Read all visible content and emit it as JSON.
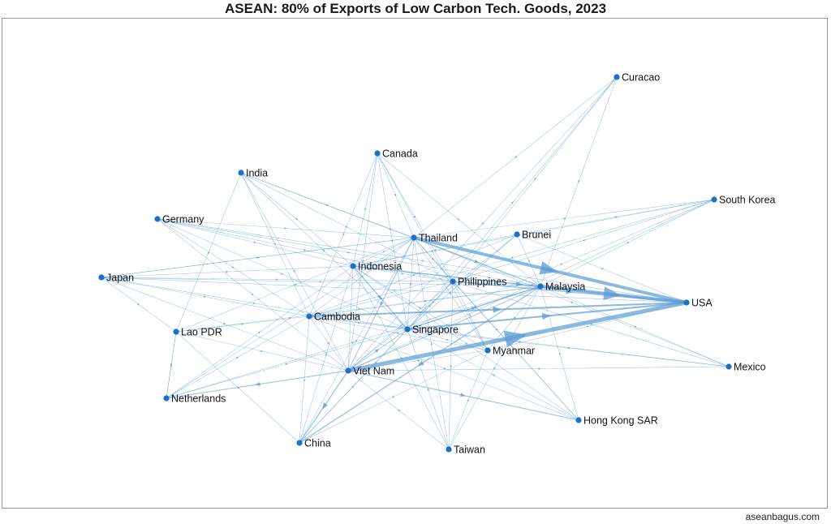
{
  "title": "ASEAN: 80% of Exports of Low Carbon Tech. Goods, 2023",
  "footer": "aseanbagus.com",
  "colors": {
    "edge": "#5b9bd5",
    "node": "#1f6fc4",
    "frame": "#9a9a9a"
  },
  "nodes": [
    {
      "id": "Curacao",
      "label": "Curacao"
    },
    {
      "id": "Canada",
      "label": "Canada"
    },
    {
      "id": "India",
      "label": "India"
    },
    {
      "id": "South Korea",
      "label": "South Korea"
    },
    {
      "id": "Germany",
      "label": "Germany"
    },
    {
      "id": "Thailand",
      "label": "Thailand"
    },
    {
      "id": "Brunei",
      "label": "Brunei"
    },
    {
      "id": "Indonesia",
      "label": "Indonesia"
    },
    {
      "id": "Japan",
      "label": "Japan"
    },
    {
      "id": "Philippines",
      "label": "Philippines"
    },
    {
      "id": "Malaysia",
      "label": "Malaysia"
    },
    {
      "id": "USA",
      "label": "USA"
    },
    {
      "id": "Cambodia",
      "label": "Cambodia"
    },
    {
      "id": "Lao PDR",
      "label": "Lao PDR"
    },
    {
      "id": "Singapore",
      "label": "Singapore"
    },
    {
      "id": "Myanmar",
      "label": "Myanmar"
    },
    {
      "id": "Mexico",
      "label": "Mexico"
    },
    {
      "id": "Viet Nam",
      "label": "Viet Nam"
    },
    {
      "id": "Netherlands",
      "label": "Netherlands"
    },
    {
      "id": "Hong Kong SAR",
      "label": "Hong Kong SAR"
    },
    {
      "id": "China",
      "label": "China"
    },
    {
      "id": "Taiwan",
      "label": "Taiwan"
    }
  ],
  "edges": [
    {
      "source": "Viet Nam",
      "target": "USA",
      "weight": 5
    },
    {
      "source": "Thailand",
      "target": "USA",
      "weight": 4
    },
    {
      "source": "Malaysia",
      "target": "USA",
      "weight": 4
    },
    {
      "source": "Singapore",
      "target": "USA",
      "weight": 2
    },
    {
      "source": "Cambodia",
      "target": "USA",
      "weight": 2
    },
    {
      "source": "Indonesia",
      "target": "USA",
      "weight": 1.5
    },
    {
      "source": "Philippines",
      "target": "USA",
      "weight": 1.5
    },
    {
      "source": "Viet Nam",
      "target": "China",
      "weight": 1.5
    },
    {
      "source": "Malaysia",
      "target": "China",
      "weight": 1.5
    },
    {
      "source": "Viet Nam",
      "target": "Hong Kong SAR",
      "weight": 1.2
    },
    {
      "source": "Viet Nam",
      "target": "Netherlands",
      "weight": 1.2
    },
    {
      "source": "Viet Nam",
      "target": "Singapore",
      "weight": 1
    },
    {
      "source": "Thailand",
      "target": "Malaysia",
      "weight": 1
    },
    {
      "source": "Singapore",
      "target": "Malaysia",
      "weight": 1
    },
    {
      "source": "Viet Nam",
      "target": "Malaysia",
      "weight": 1
    },
    {
      "source": "Indonesia",
      "target": "Singapore",
      "weight": 1
    },
    {
      "source": "Malaysia",
      "target": "Singapore",
      "weight": 1
    },
    {
      "source": "Thailand",
      "target": "Viet Nam",
      "weight": 1
    },
    {
      "source": "Brunei",
      "target": "Singapore",
      "weight": 0.8
    },
    {
      "source": "Curacao",
      "target": "Viet Nam",
      "weight": 0.6
    },
    {
      "source": "Curacao",
      "target": "Singapore",
      "weight": 0.6
    },
    {
      "source": "Curacao",
      "target": "Malaysia",
      "weight": 0.6
    },
    {
      "source": "Curacao",
      "target": "Thailand",
      "weight": 0.6
    },
    {
      "source": "Curacao",
      "target": "Philippines",
      "weight": 0.6
    },
    {
      "source": "Canada",
      "target": "Viet Nam",
      "weight": 0.6
    },
    {
      "source": "Canada",
      "target": "Singapore",
      "weight": 0.6
    },
    {
      "source": "Canada",
      "target": "Malaysia",
      "weight": 0.6
    },
    {
      "source": "Canada",
      "target": "Cambodia",
      "weight": 0.6
    },
    {
      "source": "Canada",
      "target": "Philippines",
      "weight": 0.6
    },
    {
      "source": "Canada",
      "target": "Thailand",
      "weight": 0.6
    },
    {
      "source": "Canada",
      "target": "Indonesia",
      "weight": 0.6
    },
    {
      "source": "Canada",
      "target": "Myanmar",
      "weight": 0.6
    },
    {
      "source": "India",
      "target": "Viet Nam",
      "weight": 0.6
    },
    {
      "source": "India",
      "target": "Singapore",
      "weight": 0.6
    },
    {
      "source": "India",
      "target": "Malaysia",
      "weight": 0.6
    },
    {
      "source": "India",
      "target": "Thailand",
      "weight": 0.6
    },
    {
      "source": "India",
      "target": "Indonesia",
      "weight": 0.6
    },
    {
      "source": "India",
      "target": "Philippines",
      "weight": 0.6
    },
    {
      "source": "India",
      "target": "Cambodia",
      "weight": 0.6
    },
    {
      "source": "South Korea",
      "target": "Viet Nam",
      "weight": 0.6
    },
    {
      "source": "South Korea",
      "target": "Singapore",
      "weight": 0.6
    },
    {
      "source": "South Korea",
      "target": "Malaysia",
      "weight": 0.6
    },
    {
      "source": "South Korea",
      "target": "Thailand",
      "weight": 0.6
    },
    {
      "source": "South Korea",
      "target": "Indonesia",
      "weight": 0.6
    },
    {
      "source": "South Korea",
      "target": "Philippines",
      "weight": 0.6
    },
    {
      "source": "South Korea",
      "target": "Brunei",
      "weight": 0.6
    },
    {
      "source": "Germany",
      "target": "Viet Nam",
      "weight": 0.6
    },
    {
      "source": "Germany",
      "target": "Singapore",
      "weight": 0.6
    },
    {
      "source": "Germany",
      "target": "Malaysia",
      "weight": 0.6
    },
    {
      "source": "Germany",
      "target": "Thailand",
      "weight": 0.6
    },
    {
      "source": "Germany",
      "target": "Indonesia",
      "weight": 0.6
    },
    {
      "source": "Germany",
      "target": "Philippines",
      "weight": 0.6
    },
    {
      "source": "Germany",
      "target": "Cambodia",
      "weight": 0.6
    },
    {
      "source": "Japan",
      "target": "Viet Nam",
      "weight": 0.6
    },
    {
      "source": "Japan",
      "target": "Singapore",
      "weight": 0.6
    },
    {
      "source": "Japan",
      "target": "Malaysia",
      "weight": 0.6
    },
    {
      "source": "Japan",
      "target": "Thailand",
      "weight": 0.6
    },
    {
      "source": "Japan",
      "target": "Indonesia",
      "weight": 0.6
    },
    {
      "source": "Japan",
      "target": "Philippines",
      "weight": 0.6
    },
    {
      "source": "Japan",
      "target": "Cambodia",
      "weight": 0.6
    },
    {
      "source": "Japan",
      "target": "Lao PDR",
      "weight": 0.6
    },
    {
      "source": "Mexico",
      "target": "Viet Nam",
      "weight": 0.6
    },
    {
      "source": "Mexico",
      "target": "Singapore",
      "weight": 0.6
    },
    {
      "source": "Mexico",
      "target": "Malaysia",
      "weight": 0.6
    },
    {
      "source": "Mexico",
      "target": "Thailand",
      "weight": 0.6
    },
    {
      "source": "Mexico",
      "target": "Philippines",
      "weight": 0.6
    },
    {
      "source": "Hong Kong SAR",
      "target": "Singapore",
      "weight": 0.6
    },
    {
      "source": "Hong Kong SAR",
      "target": "Malaysia",
      "weight": 0.6
    },
    {
      "source": "Hong Kong SAR",
      "target": "Thailand",
      "weight": 0.6
    },
    {
      "source": "Hong Kong SAR",
      "target": "Philippines",
      "weight": 0.6
    },
    {
      "source": "Hong Kong SAR",
      "target": "Indonesia",
      "weight": 0.6
    },
    {
      "source": "China",
      "target": "Singapore",
      "weight": 0.6
    },
    {
      "source": "China",
      "target": "Thailand",
      "weight": 0.6
    },
    {
      "source": "China",
      "target": "Indonesia",
      "weight": 0.6
    },
    {
      "source": "China",
      "target": "Philippines",
      "weight": 0.6
    },
    {
      "source": "China",
      "target": "Cambodia",
      "weight": 0.6
    },
    {
      "source": "China",
      "target": "Lao PDR",
      "weight": 0.6
    },
    {
      "source": "China",
      "target": "Myanmar",
      "weight": 0.6
    },
    {
      "source": "Taiwan",
      "target": "Viet Nam",
      "weight": 0.6
    },
    {
      "source": "Taiwan",
      "target": "Singapore",
      "weight": 0.6
    },
    {
      "source": "Taiwan",
      "target": "Malaysia",
      "weight": 0.6
    },
    {
      "source": "Taiwan",
      "target": "Thailand",
      "weight": 0.6
    },
    {
      "source": "Taiwan",
      "target": "Philippines",
      "weight": 0.6
    },
    {
      "source": "Taiwan",
      "target": "Indonesia",
      "weight": 0.6
    },
    {
      "source": "Taiwan",
      "target": "Myanmar",
      "weight": 0.6
    },
    {
      "source": "Netherlands",
      "target": "Singapore",
      "weight": 0.6
    },
    {
      "source": "Netherlands",
      "target": "Malaysia",
      "weight": 0.6
    },
    {
      "source": "Netherlands",
      "target": "Thailand",
      "weight": 0.6
    },
    {
      "source": "Netherlands",
      "target": "Indonesia",
      "weight": 0.6
    },
    {
      "source": "Netherlands",
      "target": "Lao PDR",
      "weight": 0.6
    },
    {
      "source": "USA",
      "target": "Myanmar",
      "weight": 0.6
    },
    {
      "source": "USA",
      "target": "Brunei",
      "weight": 0.6
    },
    {
      "source": "Thailand",
      "target": "Cambodia",
      "weight": 0.6
    },
    {
      "source": "Thailand",
      "target": "Lao PDR",
      "weight": 0.6
    },
    {
      "source": "Thailand",
      "target": "Myanmar",
      "weight": 0.6
    },
    {
      "source": "Thailand",
      "target": "Philippines",
      "weight": 0.6
    },
    {
      "source": "Thailand",
      "target": "Indonesia",
      "weight": 0.6
    },
    {
      "source": "Thailand",
      "target": "Japan",
      "weight": 0.6
    },
    {
      "source": "Malaysia",
      "target": "Indonesia",
      "weight": 0.6
    },
    {
      "source": "Malaysia",
      "target": "Philippines",
      "weight": 0.6
    },
    {
      "source": "Malaysia",
      "target": "Cambodia",
      "weight": 0.6
    },
    {
      "source": "Malaysia",
      "target": "Myanmar",
      "weight": 0.6
    },
    {
      "source": "Malaysia",
      "target": "Lao PDR",
      "weight": 0.6
    },
    {
      "source": "Malaysia",
      "target": "Brunei",
      "weight": 0.6
    },
    {
      "source": "Singapore",
      "target": "Indonesia",
      "weight": 0.6
    },
    {
      "source": "Singapore",
      "target": "Philippines",
      "weight": 0.6
    },
    {
      "source": "Singapore",
      "target": "Cambodia",
      "weight": 0.6
    },
    {
      "source": "Singapore",
      "target": "Myanmar",
      "weight": 0.6
    },
    {
      "source": "Singapore",
      "target": "Thailand",
      "weight": 0.6
    },
    {
      "source": "Indonesia",
      "target": "Viet Nam",
      "weight": 0.6
    },
    {
      "source": "Indonesia",
      "target": "Philippines",
      "weight": 0.6
    },
    {
      "source": "Indonesia",
      "target": "Myanmar",
      "weight": 0.6
    },
    {
      "source": "Philippines",
      "target": "Viet Nam",
      "weight": 0.6
    },
    {
      "source": "Philippines",
      "target": "Cambodia",
      "weight": 0.6
    },
    {
      "source": "Philippines",
      "target": "Myanmar",
      "weight": 0.6
    },
    {
      "source": "Cambodia",
      "target": "Viet Nam",
      "weight": 0.6
    },
    {
      "source": "Cambodia",
      "target": "Myanmar",
      "weight": 0.6
    },
    {
      "source": "Lao PDR",
      "target": "Viet Nam",
      "weight": 0.6
    },
    {
      "source": "Lao PDR",
      "target": "Cambodia",
      "weight": 0.6
    },
    {
      "source": "Lao PDR",
      "target": "Netherlands",
      "weight": 0.6
    },
    {
      "source": "Lao PDR",
      "target": "India",
      "weight": 0.6
    },
    {
      "source": "Brunei",
      "target": "Viet Nam",
      "weight": 0.6
    },
    {
      "source": "Brunei",
      "target": "Cambodia",
      "weight": 0.6
    },
    {
      "source": "Brunei",
      "target": "Indonesia",
      "weight": 0.6
    },
    {
      "source": "Myanmar",
      "target": "Viet Nam",
      "weight": 0.6
    },
    {
      "source": "Netherlands",
      "target": "Cambodia",
      "weight": 0.6
    },
    {
      "source": "USA",
      "target": "Japan",
      "weight": 0.6
    },
    {
      "source": "USA",
      "target": "Germany",
      "weight": 0.6
    },
    {
      "source": "Mexico",
      "target": "Cambodia",
      "weight": 0.6
    },
    {
      "source": "South Korea",
      "target": "Cambodia",
      "weight": 0.6
    },
    {
      "source": "Hong Kong SAR",
      "target": "Cambodia",
      "weight": 0.6
    }
  ]
}
